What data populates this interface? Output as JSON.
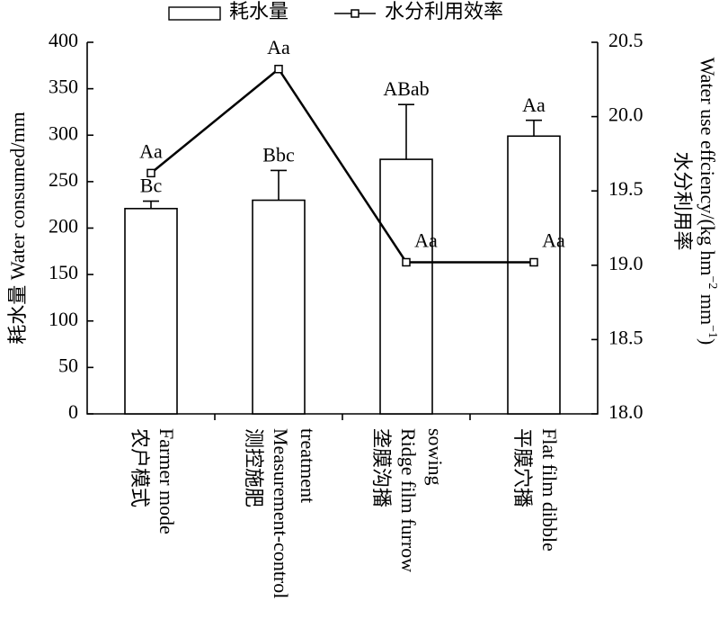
{
  "chart_data": {
    "type": "bar",
    "categories": [
      [
        "农户模式",
        "Farmer mode"
      ],
      [
        "测控施肥",
        "Measurement-control",
        "treatment"
      ],
      [
        "垄膜沟播",
        "Ridge film furrow",
        "sowing"
      ],
      [
        "平膜穴播",
        "Flat film dibble"
      ]
    ],
    "series": [
      {
        "name": "耗水量",
        "type": "bar",
        "color": "#ffffff",
        "values": [
          221,
          230,
          274,
          299
        ],
        "errors": [
          8,
          32,
          59,
          17
        ],
        "significance": [
          "Bc",
          "Bbc",
          "ABab",
          "Aa"
        ]
      },
      {
        "name": "水分利用效率",
        "type": "line",
        "axis": "y2",
        "color": "#000000",
        "values": [
          19.62,
          20.32,
          19.02,
          19.02
        ],
        "significance": [
          "Aa",
          "Aa",
          "Aa",
          "Aa"
        ]
      }
    ],
    "ylabel": "耗水量 Water consumed/mm",
    "y2label": [
      "水分利用率",
      [
        "Water use effciency/(kg hm",
        "−2",
        " mm",
        "−1",
        ")"
      ]
    ],
    "ylim": [
      0,
      400
    ],
    "yticks": [
      0,
      50,
      100,
      150,
      200,
      250,
      300,
      350,
      400
    ],
    "y2lim": [
      18,
      20.5
    ],
    "y2ticks": [
      {
        "value": 18,
        "label": "18.0"
      },
      18.5,
      {
        "value": 19,
        "label": "19.0"
      },
      19.5,
      {
        "value": 20,
        "label": "20.0"
      },
      20.5
    ],
    "legend": "top"
  }
}
